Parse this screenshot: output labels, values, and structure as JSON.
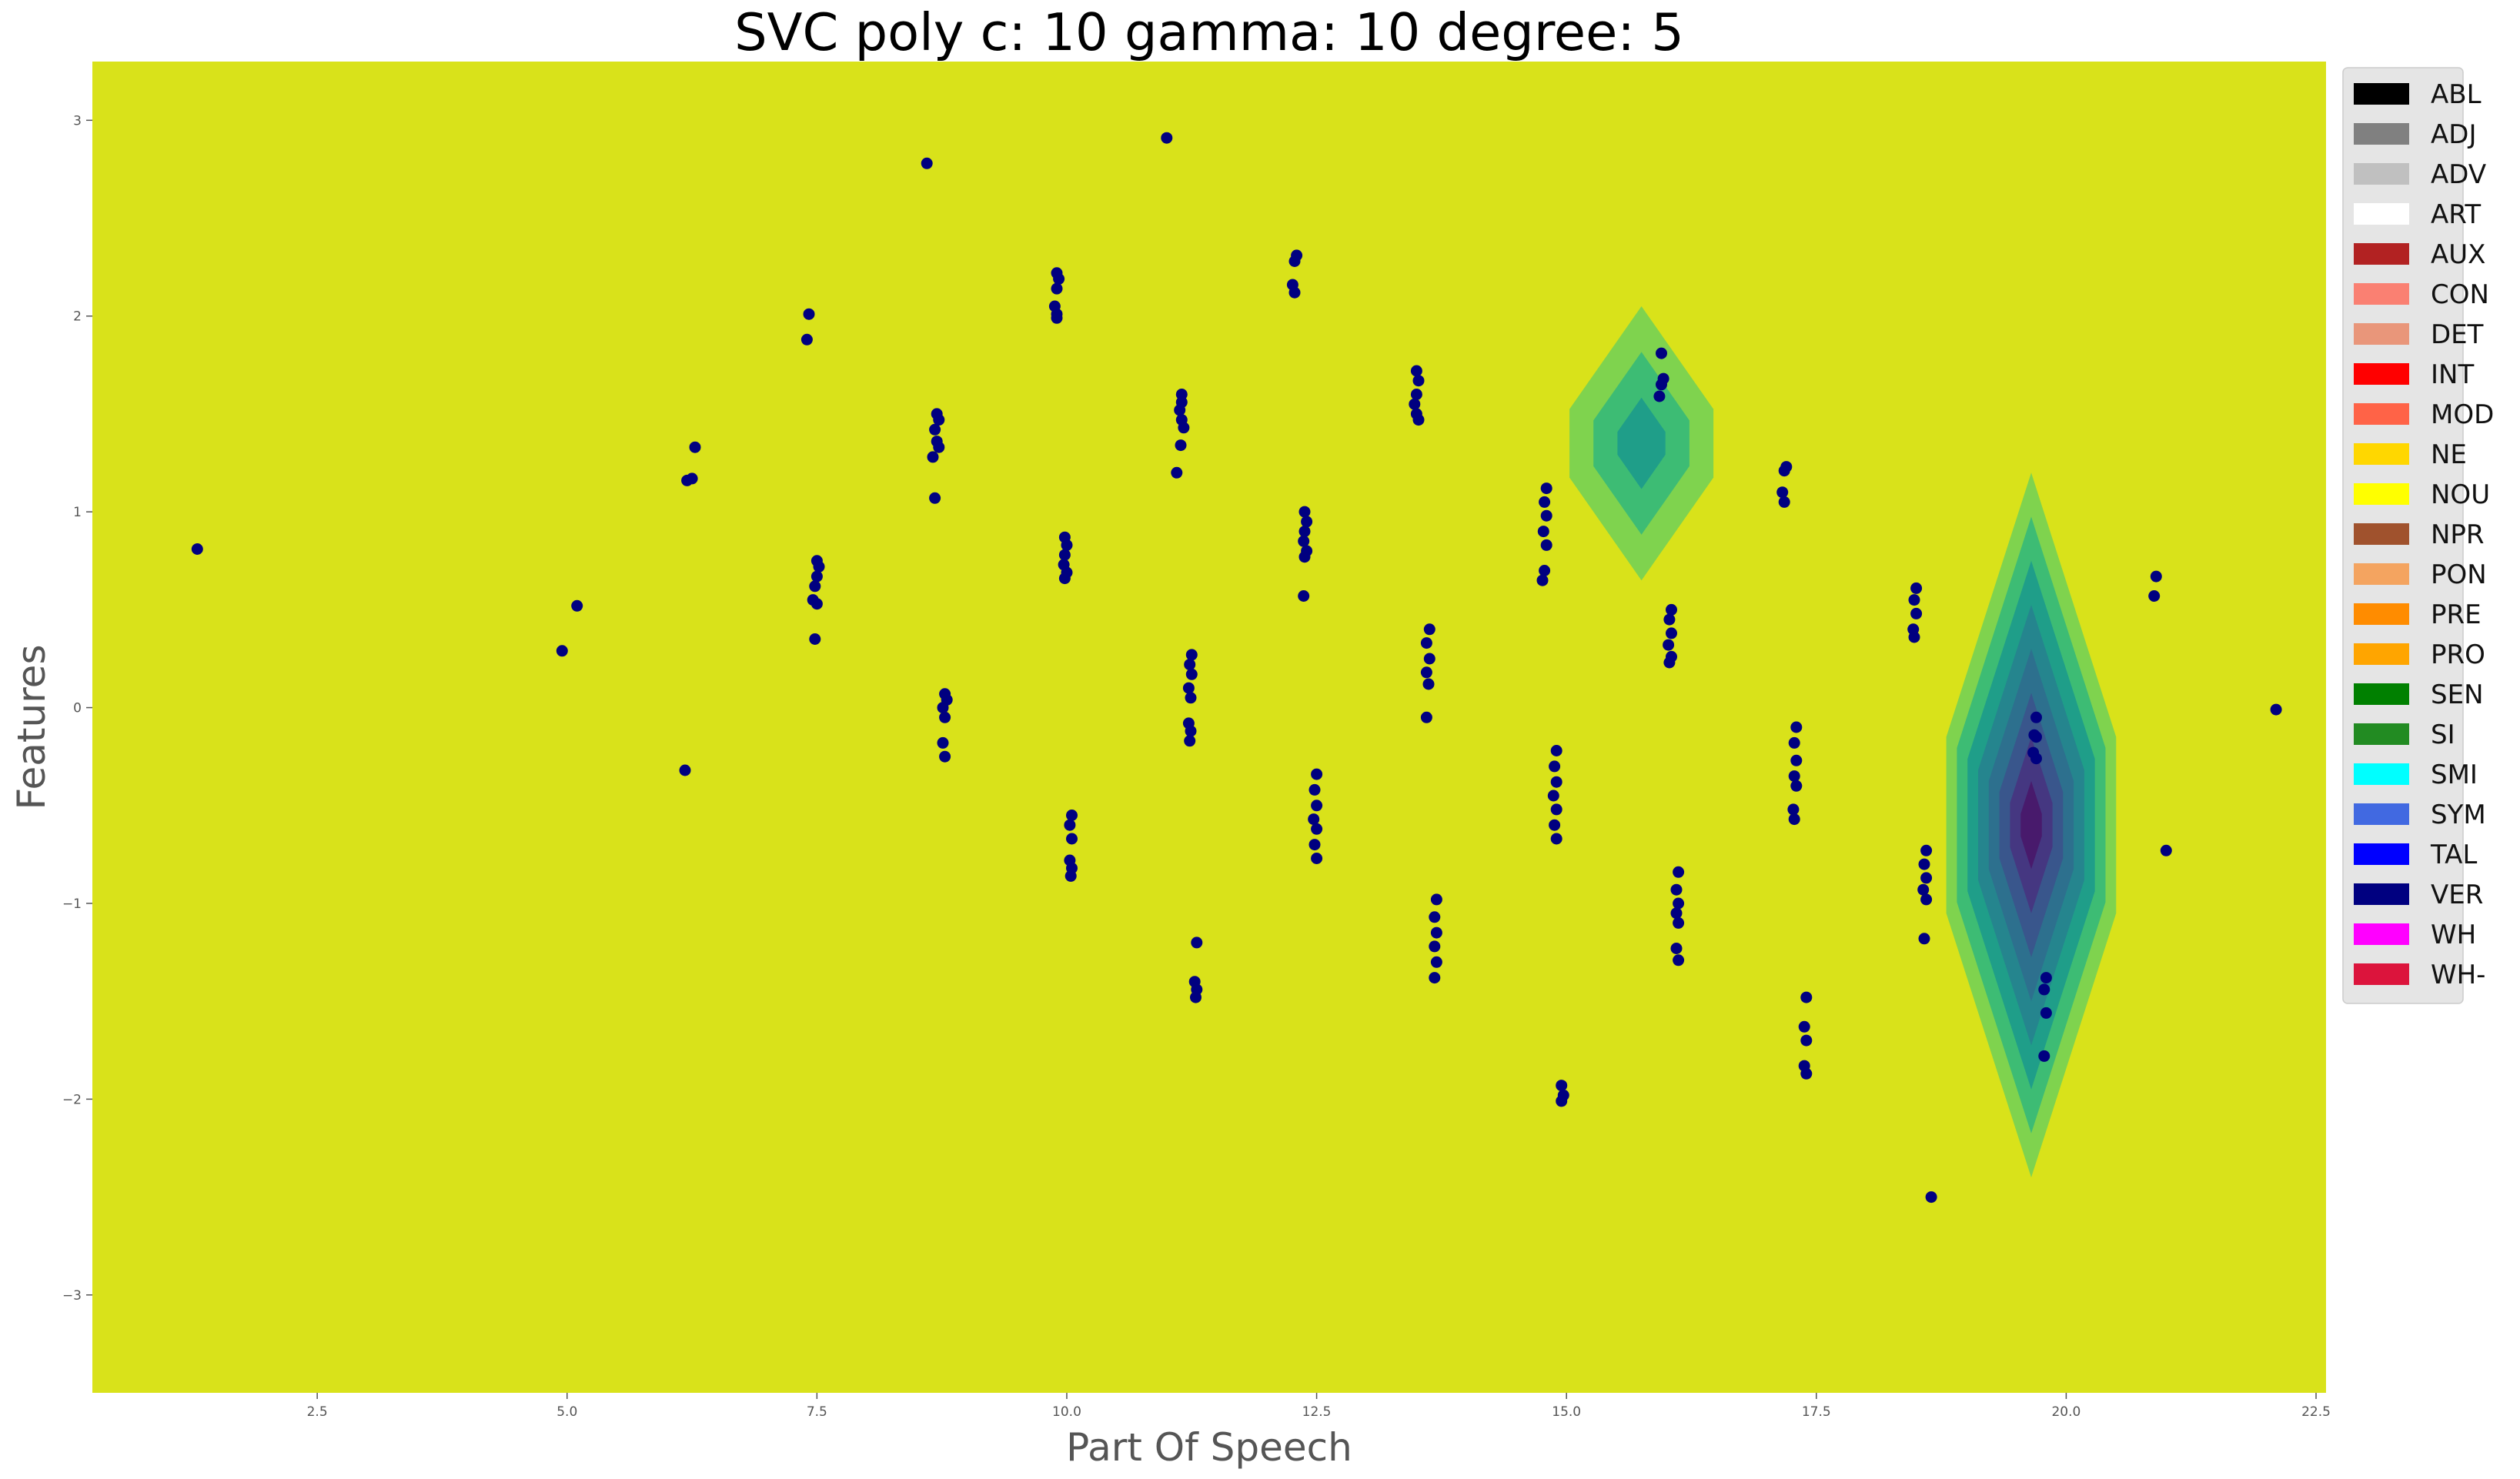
{
  "chart_data": {
    "type": "scatter",
    "title": "SVC poly c: 10 gamma: 10 degree: 5",
    "xlabel": "Part Of Speech",
    "ylabel": "Features",
    "xlim": [
      0.25,
      22.6
    ],
    "ylim": [
      -3.5,
      3.3
    ],
    "xticks": [
      2.5,
      5.0,
      7.5,
      10.0,
      12.5,
      15.0,
      17.5,
      20.0,
      22.5
    ],
    "xtick_labels": [
      "2.5",
      "5.0",
      "7.5",
      "10.0",
      "12.5",
      "15.0",
      "17.5",
      "20.0",
      "22.5"
    ],
    "yticks": [
      3,
      2,
      1,
      0,
      -1,
      -2,
      -3
    ],
    "ytick_labels": [
      "3",
      "2",
      "1",
      "0",
      "−1",
      "−2",
      "−3"
    ],
    "grid": false,
    "legend_position": "outside right, top",
    "background_color": "#d9e21a",
    "point_color": "#000080",
    "contour_regions": [
      {
        "center_x": 15.75,
        "center_y": 1.35,
        "half_width": 0.72,
        "half_height": 0.7,
        "levels": [
          "#7fd34e",
          "#3dbc74",
          "#1f9e89"
        ]
      },
      {
        "center_x": 19.65,
        "center_y": -0.6,
        "half_width": 0.85,
        "half_height": 1.8,
        "levels": [
          "#7fd34e",
          "#3dbc74",
          "#1f9e89",
          "#25858e",
          "#2d708e",
          "#39568c",
          "#453781",
          "#481a6c"
        ]
      }
    ],
    "points": [
      {
        "x": 1.3,
        "y": 0.81
      },
      {
        "x": 4.95,
        "y": 0.29
      },
      {
        "x": 5.1,
        "y": 0.52
      },
      {
        "x": 6.2,
        "y": 1.16
      },
      {
        "x": 6.25,
        "y": 1.17
      },
      {
        "x": 6.28,
        "y": 1.33
      },
      {
        "x": 6.18,
        "y": -0.32
      },
      {
        "x": 7.4,
        "y": 1.88
      },
      {
        "x": 7.42,
        "y": 2.01
      },
      {
        "x": 7.5,
        "y": 0.75
      },
      {
        "x": 7.52,
        "y": 0.72
      },
      {
        "x": 7.5,
        "y": 0.67
      },
      {
        "x": 7.48,
        "y": 0.62
      },
      {
        "x": 7.46,
        "y": 0.55
      },
      {
        "x": 7.5,
        "y": 0.53
      },
      {
        "x": 7.48,
        "y": 0.35
      },
      {
        "x": 8.6,
        "y": 2.78
      },
      {
        "x": 8.7,
        "y": 1.5
      },
      {
        "x": 8.72,
        "y": 1.47
      },
      {
        "x": 8.68,
        "y": 1.42
      },
      {
        "x": 8.7,
        "y": 1.36
      },
      {
        "x": 8.72,
        "y": 1.33
      },
      {
        "x": 8.66,
        "y": 1.28
      },
      {
        "x": 8.68,
        "y": 1.07
      },
      {
        "x": 8.78,
        "y": 0.07
      },
      {
        "x": 8.8,
        "y": 0.04
      },
      {
        "x": 8.76,
        "y": 0.0
      },
      {
        "x": 8.78,
        "y": -0.05
      },
      {
        "x": 8.76,
        "y": -0.18
      },
      {
        "x": 8.78,
        "y": -0.25
      },
      {
        "x": 9.9,
        "y": 2.22
      },
      {
        "x": 9.92,
        "y": 2.19
      },
      {
        "x": 9.9,
        "y": 2.14
      },
      {
        "x": 9.88,
        "y": 2.05
      },
      {
        "x": 9.9,
        "y": 2.01
      },
      {
        "x": 9.9,
        "y": 1.99
      },
      {
        "x": 9.98,
        "y": 0.87
      },
      {
        "x": 10.0,
        "y": 0.83
      },
      {
        "x": 9.98,
        "y": 0.78
      },
      {
        "x": 9.97,
        "y": 0.73
      },
      {
        "x": 10.0,
        "y": 0.69
      },
      {
        "x": 9.98,
        "y": 0.66
      },
      {
        "x": 10.05,
        "y": -0.55
      },
      {
        "x": 10.03,
        "y": -0.6
      },
      {
        "x": 10.05,
        "y": -0.67
      },
      {
        "x": 10.03,
        "y": -0.78
      },
      {
        "x": 10.05,
        "y": -0.82
      },
      {
        "x": 10.04,
        "y": -0.86
      },
      {
        "x": 11.0,
        "y": 2.91
      },
      {
        "x": 11.15,
        "y": 1.6
      },
      {
        "x": 11.15,
        "y": 1.56
      },
      {
        "x": 11.13,
        "y": 1.52
      },
      {
        "x": 11.15,
        "y": 1.47
      },
      {
        "x": 11.17,
        "y": 1.43
      },
      {
        "x": 11.14,
        "y": 1.34
      },
      {
        "x": 11.1,
        "y": 1.2
      },
      {
        "x": 11.25,
        "y": 0.27
      },
      {
        "x": 11.23,
        "y": 0.22
      },
      {
        "x": 11.25,
        "y": 0.17
      },
      {
        "x": 11.22,
        "y": 0.1
      },
      {
        "x": 11.24,
        "y": 0.05
      },
      {
        "x": 11.22,
        "y": -0.08
      },
      {
        "x": 11.24,
        "y": -0.12
      },
      {
        "x": 11.23,
        "y": -0.17
      },
      {
        "x": 11.3,
        "y": -1.2
      },
      {
        "x": 11.28,
        "y": -1.4
      },
      {
        "x": 11.3,
        "y": -1.44
      },
      {
        "x": 11.29,
        "y": -1.48
      },
      {
        "x": 12.3,
        "y": 2.31
      },
      {
        "x": 12.28,
        "y": 2.28
      },
      {
        "x": 12.26,
        "y": 2.16
      },
      {
        "x": 12.28,
        "y": 2.12
      },
      {
        "x": 12.38,
        "y": 1.0
      },
      {
        "x": 12.4,
        "y": 0.95
      },
      {
        "x": 12.38,
        "y": 0.9
      },
      {
        "x": 12.37,
        "y": 0.85
      },
      {
        "x": 12.4,
        "y": 0.8
      },
      {
        "x": 12.38,
        "y": 0.77
      },
      {
        "x": 12.37,
        "y": 0.57
      },
      {
        "x": 12.5,
        "y": -0.34
      },
      {
        "x": 12.48,
        "y": -0.42
      },
      {
        "x": 12.5,
        "y": -0.5
      },
      {
        "x": 12.47,
        "y": -0.57
      },
      {
        "x": 12.5,
        "y": -0.62
      },
      {
        "x": 12.48,
        "y": -0.7
      },
      {
        "x": 12.5,
        "y": -0.77
      },
      {
        "x": 13.5,
        "y": 1.72
      },
      {
        "x": 13.52,
        "y": 1.67
      },
      {
        "x": 13.5,
        "y": 1.6
      },
      {
        "x": 13.48,
        "y": 1.55
      },
      {
        "x": 13.5,
        "y": 1.5
      },
      {
        "x": 13.52,
        "y": 1.47
      },
      {
        "x": 13.63,
        "y": 0.4
      },
      {
        "x": 13.6,
        "y": 0.33
      },
      {
        "x": 13.63,
        "y": 0.25
      },
      {
        "x": 13.6,
        "y": 0.18
      },
      {
        "x": 13.62,
        "y": 0.12
      },
      {
        "x": 13.6,
        "y": -0.05
      },
      {
        "x": 13.7,
        "y": -0.98
      },
      {
        "x": 13.68,
        "y": -1.07
      },
      {
        "x": 13.7,
        "y": -1.15
      },
      {
        "x": 13.68,
        "y": -1.22
      },
      {
        "x": 13.7,
        "y": -1.3
      },
      {
        "x": 13.68,
        "y": -1.38
      },
      {
        "x": 14.8,
        "y": 1.12
      },
      {
        "x": 14.78,
        "y": 1.05
      },
      {
        "x": 14.8,
        "y": 0.98
      },
      {
        "x": 14.77,
        "y": 0.9
      },
      {
        "x": 14.8,
        "y": 0.83
      },
      {
        "x": 14.78,
        "y": 0.7
      },
      {
        "x": 14.76,
        "y": 0.65
      },
      {
        "x": 14.9,
        "y": -0.22
      },
      {
        "x": 14.88,
        "y": -0.3
      },
      {
        "x": 14.9,
        "y": -0.38
      },
      {
        "x": 14.87,
        "y": -0.45
      },
      {
        "x": 14.9,
        "y": -0.52
      },
      {
        "x": 14.88,
        "y": -0.6
      },
      {
        "x": 14.9,
        "y": -0.67
      },
      {
        "x": 14.95,
        "y": -1.93
      },
      {
        "x": 14.97,
        "y": -1.98
      },
      {
        "x": 14.95,
        "y": -2.01
      },
      {
        "x": 15.95,
        "y": 1.81
      },
      {
        "x": 15.97,
        "y": 1.68
      },
      {
        "x": 15.95,
        "y": 1.65
      },
      {
        "x": 15.93,
        "y": 1.59
      },
      {
        "x": 16.05,
        "y": 0.5
      },
      {
        "x": 16.03,
        "y": 0.45
      },
      {
        "x": 16.05,
        "y": 0.38
      },
      {
        "x": 16.02,
        "y": 0.32
      },
      {
        "x": 16.05,
        "y": 0.26
      },
      {
        "x": 16.03,
        "y": 0.23
      },
      {
        "x": 16.12,
        "y": -0.84
      },
      {
        "x": 16.1,
        "y": -0.93
      },
      {
        "x": 16.12,
        "y": -1.0
      },
      {
        "x": 16.1,
        "y": -1.05
      },
      {
        "x": 16.12,
        "y": -1.1
      },
      {
        "x": 16.1,
        "y": -1.23
      },
      {
        "x": 16.12,
        "y": -1.29
      },
      {
        "x": 17.2,
        "y": 1.23
      },
      {
        "x": 17.18,
        "y": 1.21
      },
      {
        "x": 17.16,
        "y": 1.1
      },
      {
        "x": 17.18,
        "y": 1.05
      },
      {
        "x": 17.3,
        "y": -0.1
      },
      {
        "x": 17.28,
        "y": -0.18
      },
      {
        "x": 17.3,
        "y": -0.27
      },
      {
        "x": 17.28,
        "y": -0.35
      },
      {
        "x": 17.3,
        "y": -0.4
      },
      {
        "x": 17.27,
        "y": -0.52
      },
      {
        "x": 17.28,
        "y": -0.57
      },
      {
        "x": 17.4,
        "y": -1.48
      },
      {
        "x": 17.38,
        "y": -1.63
      },
      {
        "x": 17.4,
        "y": -1.7
      },
      {
        "x": 17.38,
        "y": -1.83
      },
      {
        "x": 17.4,
        "y": -1.87
      },
      {
        "x": 18.5,
        "y": 0.61
      },
      {
        "x": 18.48,
        "y": 0.55
      },
      {
        "x": 18.5,
        "y": 0.48
      },
      {
        "x": 18.47,
        "y": 0.4
      },
      {
        "x": 18.48,
        "y": 0.36
      },
      {
        "x": 18.6,
        "y": -0.73
      },
      {
        "x": 18.58,
        "y": -0.8
      },
      {
        "x": 18.6,
        "y": -0.87
      },
      {
        "x": 18.57,
        "y": -0.93
      },
      {
        "x": 18.6,
        "y": -0.98
      },
      {
        "x": 18.58,
        "y": -1.18
      },
      {
        "x": 18.65,
        "y": -2.5
      },
      {
        "x": 19.7,
        "y": -0.05
      },
      {
        "x": 19.68,
        "y": -0.14
      },
      {
        "x": 19.7,
        "y": -0.15
      },
      {
        "x": 19.67,
        "y": -0.23
      },
      {
        "x": 19.7,
        "y": -0.26
      },
      {
        "x": 19.8,
        "y": -1.38
      },
      {
        "x": 19.78,
        "y": -1.44
      },
      {
        "x": 19.8,
        "y": -1.56
      },
      {
        "x": 19.78,
        "y": -1.78
      },
      {
        "x": 20.9,
        "y": 0.67
      },
      {
        "x": 20.88,
        "y": 0.57
      },
      {
        "x": 21.0,
        "y": -0.73
      },
      {
        "x": 22.1,
        "y": -0.01
      }
    ],
    "legend": [
      {
        "label": "ABL",
        "color": "#000000"
      },
      {
        "label": "ADJ",
        "color": "#808080"
      },
      {
        "label": "ADV",
        "color": "#c0c0c0"
      },
      {
        "label": "ART",
        "color": "#ffffff"
      },
      {
        "label": "AUX",
        "color": "#b22222"
      },
      {
        "label": "CON",
        "color": "#fa8072"
      },
      {
        "label": "DET",
        "color": "#e9967a"
      },
      {
        "label": "INT",
        "color": "#ff0000"
      },
      {
        "label": "MOD",
        "color": "#ff6347"
      },
      {
        "label": "NE",
        "color": "#ffd700"
      },
      {
        "label": "NOU",
        "color": "#ffff00"
      },
      {
        "label": "NPR",
        "color": "#a0522d"
      },
      {
        "label": "PON",
        "color": "#f4a460"
      },
      {
        "label": "PRE",
        "color": "#ff8c00"
      },
      {
        "label": "PRO",
        "color": "#ffa500"
      },
      {
        "label": "SEN",
        "color": "#008000"
      },
      {
        "label": "SI",
        "color": "#228b22"
      },
      {
        "label": "SMI",
        "color": "#00ffff"
      },
      {
        "label": "SYM",
        "color": "#4169e1"
      },
      {
        "label": "TAL",
        "color": "#0000ff"
      },
      {
        "label": "VER",
        "color": "#000080"
      },
      {
        "label": "WH",
        "color": "#ff00ff"
      },
      {
        "label": "WH-",
        "color": "#dc143c"
      }
    ]
  }
}
